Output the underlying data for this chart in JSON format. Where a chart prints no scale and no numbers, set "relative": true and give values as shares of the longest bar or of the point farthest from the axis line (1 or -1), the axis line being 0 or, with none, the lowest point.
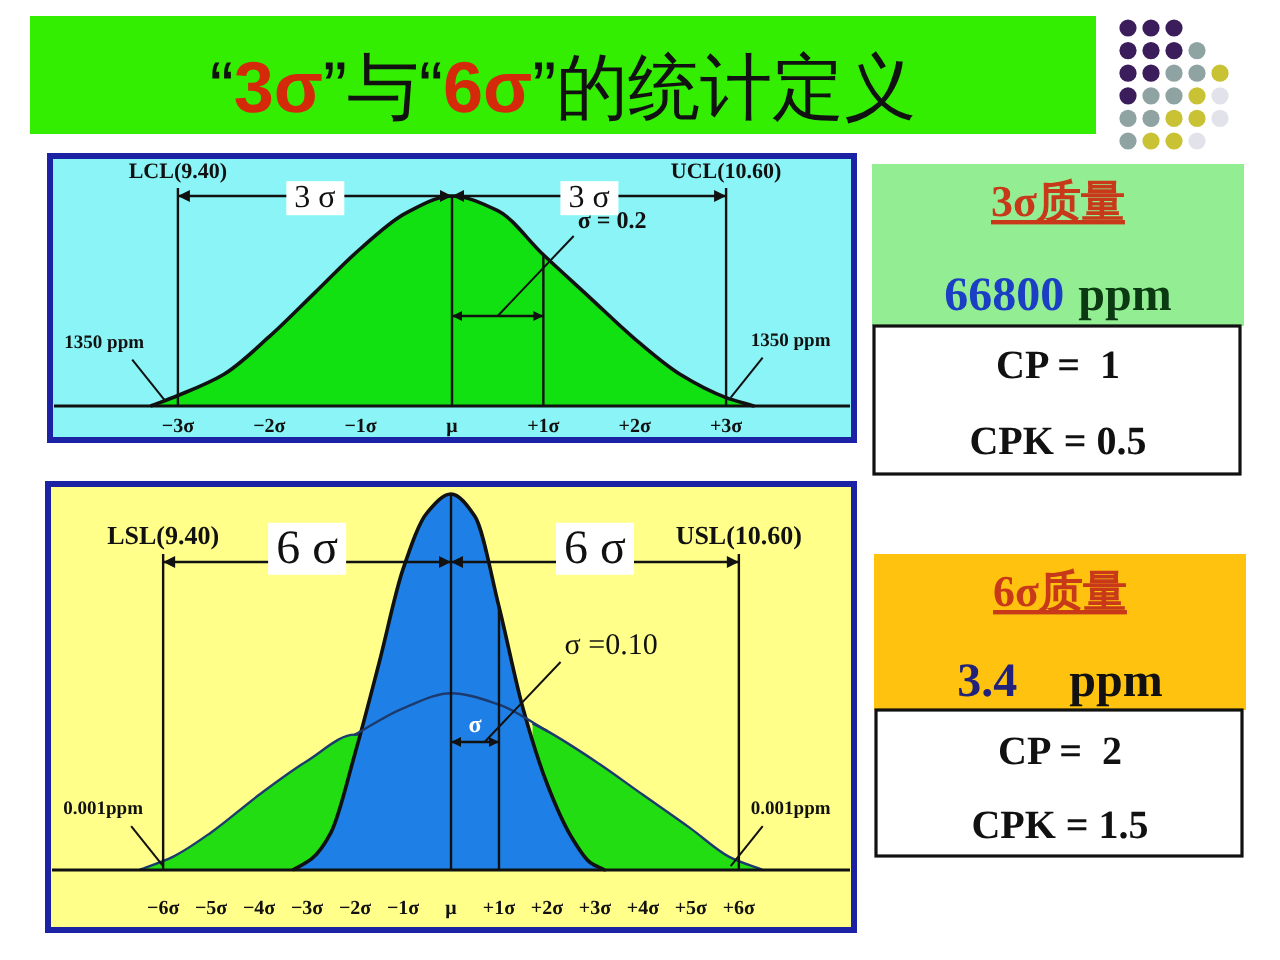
{
  "chart_data": [
    {
      "type": "area",
      "title": "“3σ”与“6σ”的统计定义",
      "relative": true,
      "x": [
        -3.3,
        -3,
        -2.5,
        -2,
        -1.5,
        -1,
        -0.5,
        0,
        0.5,
        1,
        1.5,
        2,
        2.5,
        3,
        3.3
      ],
      "xlim": [
        -4.4,
        4.4
      ],
      "xticks": [
        {
          "value": -3,
          "label": "−3σ"
        },
        {
          "value": -2,
          "label": "−2σ"
        },
        {
          "value": -1,
          "label": "−1σ"
        },
        {
          "value": 0,
          "label": "μ"
        },
        {
          "value": 1,
          "label": "+1σ"
        },
        {
          "value": 2,
          "label": "+2σ"
        },
        {
          "value": 3,
          "label": "+3σ"
        }
      ],
      "series": [
        {
          "color": "#11e011",
          "values": [
            0,
            0.05,
            0.15,
            0.33,
            0.54,
            0.75,
            0.92,
            1,
            0.93,
            0.72,
            0.52,
            0.32,
            0.15,
            0.04,
            0
          ]
        }
      ],
      "ref_lines": [
        {
          "axis": "x",
          "value": -3,
          "label": "LCL(9.40)"
        },
        {
          "axis": "x",
          "value": 3,
          "label": "UCL(10.60)"
        },
        {
          "axis": "x",
          "value": 0
        },
        {
          "axis": "x",
          "value": 1
        }
      ],
      "annotations": [
        "3 σ",
        "3 σ",
        "σ = 0.2",
        {
          "text": "1350 ppm",
          "x": -3.15,
          "y": 0.03
        },
        {
          "text": "1350 ppm",
          "x": 3.05,
          "y": 0.04
        }
      ]
    },
    {
      "type": "other",
      "title": "3σ质量",
      "annotations": [
        "66800",
        "ppm",
        "CP =  1",
        "CPK = 0.5"
      ]
    },
    {
      "type": "area",
      "relative": true,
      "xlim": [
        -8.4,
        8.4
      ],
      "xticks": [
        {
          "value": -6,
          "label": "−6σ"
        },
        {
          "value": -5,
          "label": "−5σ"
        },
        {
          "value": -4,
          "label": "−4σ"
        },
        {
          "value": -3,
          "label": "−3σ"
        },
        {
          "value": -2,
          "label": "−2σ"
        },
        {
          "value": -1,
          "label": "−1σ"
        },
        {
          "value": 0,
          "label": "μ"
        },
        {
          "value": 1,
          "label": "+1σ"
        },
        {
          "value": 2,
          "label": "+2σ"
        },
        {
          "value": 3,
          "label": "+3σ"
        },
        {
          "value": 4,
          "label": "+4σ"
        },
        {
          "value": 5,
          "label": "+5σ"
        },
        {
          "value": 6,
          "label": "+6σ"
        }
      ],
      "series": [
        {
          "color": "#22dd11",
          "x": [
            -6.5,
            -5.8,
            -5,
            -4,
            -3,
            -2,
            -1.93,
            -1,
            0,
            1,
            1.7,
            2,
            3,
            4,
            5,
            5.8,
            6.5
          ],
          "values": [
            0,
            0.035,
            0.1,
            0.2,
            0.29,
            0.36,
            0.36,
            null,
            null,
            null,
            0.39,
            0.37,
            0.29,
            0.2,
            0.11,
            0.035,
            0
          ]
        },
        {
          "color": "#1e80e6",
          "x": [
            -3.3,
            -2.9,
            -2.5,
            -2,
            -1.5,
            -1,
            -0.5,
            0,
            0.5,
            1,
            1.5,
            2,
            2.5,
            2.9,
            3.2
          ],
          "values": [
            0,
            0.03,
            0.1,
            0.31,
            0.55,
            0.8,
            0.95,
            1,
            0.94,
            0.7,
            0.43,
            0.23,
            0.09,
            0.02,
            0
          ]
        },
        {
          "type": "line",
          "color": "#1d3a6e",
          "x": [
            -2,
            -1,
            0,
            1,
            2
          ],
          "values": [
            0.36,
            0.43,
            0.47,
            0.44,
            0.37
          ]
        }
      ],
      "ref_lines": [
        {
          "axis": "x",
          "value": -6,
          "label": "LSL(9.40)"
        },
        {
          "axis": "x",
          "value": 6,
          "label": "USL(10.60)"
        },
        {
          "axis": "x",
          "value": 0
        },
        {
          "axis": "x",
          "value": 1
        }
      ],
      "annotations": [
        "6 σ",
        "6 σ",
        "σ =0.10",
        "σ",
        {
          "text": "0.001ppm",
          "x": -6,
          "y": 0.01
        },
        {
          "text": "0.001ppm",
          "x": 5.83,
          "y": 0.01
        }
      ]
    },
    {
      "type": "other",
      "title": "6σ质量",
      "annotations": [
        "3.4",
        "ppm",
        "CP =  2",
        "CPK = 1.5"
      ]
    }
  ]
}
